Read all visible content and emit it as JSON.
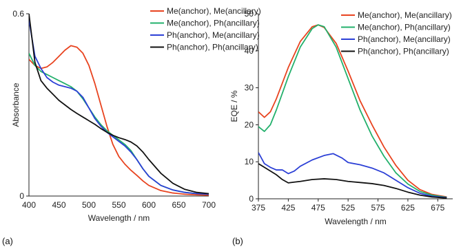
{
  "chart_data": [
    {
      "type": "line",
      "panel_label": "(a)",
      "xlabel": "Wavelength / nm",
      "ylabel": "Absorbance",
      "xlim": [
        400,
        700
      ],
      "ylim": [
        0,
        0.6
      ],
      "x_ticks": [
        "400",
        "450",
        "500",
        "550",
        "600",
        "650",
        "700"
      ],
      "y_ticks": [
        "0",
        "0.6"
      ],
      "legend_position": "top-right",
      "series": [
        {
          "name": "Me(anchor), Me(ancillary)",
          "color": "#e8431f",
          "x": [
            400,
            410,
            420,
            430,
            440,
            450,
            460,
            470,
            480,
            490,
            500,
            510,
            520,
            530,
            540,
            550,
            560,
            570,
            580,
            590,
            600,
            620,
            640,
            660,
            680,
            700
          ],
          "y": [
            0.45,
            0.43,
            0.42,
            0.425,
            0.44,
            0.46,
            0.48,
            0.495,
            0.49,
            0.47,
            0.43,
            0.37,
            0.3,
            0.23,
            0.17,
            0.13,
            0.105,
            0.085,
            0.068,
            0.05,
            0.035,
            0.018,
            0.01,
            0.006,
            0.004,
            0.003
          ]
        },
        {
          "name": "Me(anchor), Ph(ancillary)",
          "color": "#22b06b",
          "x": [
            400,
            410,
            420,
            430,
            440,
            450,
            460,
            470,
            480,
            490,
            500,
            510,
            520,
            530,
            540,
            550,
            560,
            570,
            580,
            590,
            600,
            620,
            640,
            660,
            680,
            700
          ],
          "y": [
            0.47,
            0.43,
            0.41,
            0.4,
            0.39,
            0.38,
            0.37,
            0.36,
            0.345,
            0.32,
            0.29,
            0.26,
            0.235,
            0.215,
            0.2,
            0.185,
            0.17,
            0.15,
            0.12,
            0.09,
            0.065,
            0.035,
            0.02,
            0.012,
            0.008,
            0.006
          ]
        },
        {
          "name": "Ph(anchor), Me(ancillary)",
          "color": "#2b3fd6",
          "x": [
            400,
            410,
            420,
            430,
            440,
            450,
            460,
            470,
            480,
            490,
            500,
            510,
            520,
            530,
            540,
            550,
            560,
            570,
            580,
            590,
            600,
            620,
            640,
            660,
            680,
            700
          ],
          "y": [
            0.58,
            0.46,
            0.42,
            0.39,
            0.375,
            0.365,
            0.36,
            0.355,
            0.345,
            0.325,
            0.29,
            0.255,
            0.23,
            0.21,
            0.195,
            0.18,
            0.165,
            0.145,
            0.12,
            0.09,
            0.065,
            0.035,
            0.02,
            0.012,
            0.008,
            0.006
          ]
        },
        {
          "name": "Ph(anchor), Ph(ancillary)",
          "color": "#111111",
          "x": [
            400,
            410,
            420,
            430,
            440,
            450,
            460,
            470,
            480,
            490,
            500,
            510,
            520,
            530,
            540,
            550,
            560,
            570,
            580,
            590,
            600,
            620,
            640,
            660,
            680,
            700
          ],
          "y": [
            0.6,
            0.44,
            0.38,
            0.355,
            0.335,
            0.315,
            0.3,
            0.285,
            0.272,
            0.26,
            0.248,
            0.236,
            0.222,
            0.21,
            0.2,
            0.192,
            0.186,
            0.178,
            0.165,
            0.145,
            0.12,
            0.075,
            0.042,
            0.022,
            0.012,
            0.008
          ]
        }
      ]
    },
    {
      "type": "line",
      "panel_label": "(b)",
      "xlabel": "Wavelength / nm",
      "ylabel": "EQE / %",
      "xlim": [
        375,
        700
      ],
      "ylim": [
        0,
        50
      ],
      "x_ticks": [
        "375",
        "425",
        "475",
        "525",
        "575",
        "625",
        "675"
      ],
      "y_ticks": [
        "0",
        "10",
        "20",
        "30",
        "40",
        "50"
      ],
      "legend_position": "top-right",
      "series": [
        {
          "name": "Me(anchor), Me(ancillary)",
          "color": "#e8431f",
          "x": [
            375,
            385,
            395,
            405,
            425,
            445,
            465,
            475,
            485,
            505,
            525,
            545,
            565,
            585,
            605,
            625,
            645,
            665,
            690
          ],
          "y": [
            23.5,
            22,
            23.5,
            27,
            35.5,
            42.5,
            46.5,
            47,
            46.3,
            42,
            34.5,
            26.5,
            20,
            14,
            9,
            5,
            2.5,
            1.2,
            0.5
          ]
        },
        {
          "name": "Me(anchor), Ph(ancillary)",
          "color": "#22b06b",
          "x": [
            375,
            385,
            395,
            405,
            425,
            445,
            465,
            475,
            485,
            505,
            525,
            545,
            565,
            585,
            605,
            625,
            645,
            665,
            690
          ],
          "y": [
            19.5,
            18.2,
            20,
            24,
            33,
            41,
            46,
            47,
            46.5,
            41,
            32.5,
            24,
            17,
            11.5,
            7,
            4,
            2,
            1,
            0.4
          ]
        },
        {
          "name": "Ph(anchor), Me(ancillary)",
          "color": "#2b3fd6",
          "x": [
            375,
            385,
            395,
            405,
            415,
            425,
            435,
            445,
            465,
            485,
            500,
            515,
            525,
            545,
            565,
            585,
            605,
            625,
            645,
            665,
            690
          ],
          "y": [
            12.5,
            9.5,
            8.5,
            7.8,
            7.8,
            6.8,
            7.5,
            8.8,
            10.5,
            11.7,
            12.2,
            11,
            9.8,
            9.2,
            8.3,
            7,
            5,
            3,
            1.5,
            0.7,
            0.3
          ]
        },
        {
          "name": "Ph(anchor), Ph(ancillary)",
          "color": "#111111",
          "x": [
            375,
            385,
            395,
            405,
            415,
            425,
            435,
            445,
            465,
            485,
            505,
            525,
            545,
            565,
            585,
            605,
            625,
            645,
            665,
            690
          ],
          "y": [
            9.5,
            8.5,
            7.5,
            6.5,
            5.2,
            4.3,
            4.5,
            4.7,
            5.2,
            5.4,
            5.2,
            4.7,
            4.4,
            4.1,
            3.6,
            2.8,
            1.8,
            1,
            0.5,
            0.2
          ]
        }
      ]
    }
  ]
}
